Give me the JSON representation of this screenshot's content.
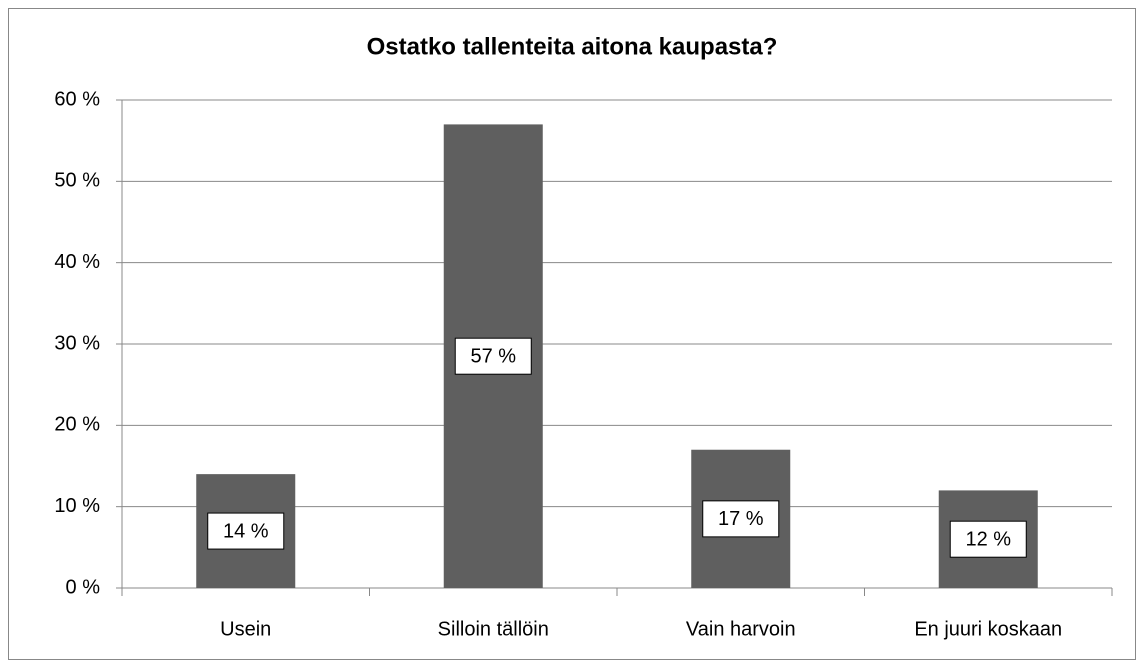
{
  "chart_data": {
    "type": "bar",
    "title": "Ostatko tallenteita aitona kaupasta?",
    "categories": [
      "Usein",
      "Silloin tällöin",
      "Vain harvoin",
      "En juuri koskaan"
    ],
    "values": [
      14,
      57,
      17,
      12
    ],
    "value_labels": [
      "14 %",
      "57 %",
      "17 %",
      "12 %"
    ],
    "color": "#5f5f5f",
    "ylim": [
      0,
      60
    ],
    "yticks": [
      {
        "value": 0,
        "label": "0 %"
      },
      {
        "value": 10,
        "label": "10 %"
      },
      {
        "value": 20,
        "label": "20 %"
      },
      {
        "value": 30,
        "label": "30 %"
      },
      {
        "value": 40,
        "label": "40 %"
      },
      {
        "value": 50,
        "label": "50 %"
      },
      {
        "value": 60,
        "label": "60 %"
      }
    ],
    "grid": true
  }
}
